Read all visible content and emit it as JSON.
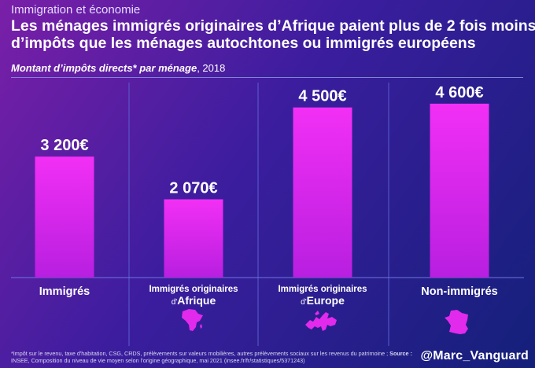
{
  "header": {
    "kicker": "Immigration et économie",
    "title_line1": "Les ménages immigrés originaires d’Afrique paient plus de 2 fois moins",
    "title_line2": "d’impôts que les ménages autochtones ou immigrés européens",
    "subtitle_bold": "Montant d’impôts directs* par ménage",
    "subtitle_rest": ", 2018"
  },
  "chart_data": {
    "type": "bar",
    "title": "Montant d’impôts directs* par ménage, 2018",
    "unit": "€",
    "ylim": [
      0,
      5200
    ],
    "categories": [
      {
        "line1": "",
        "line2": "Immigrés",
        "prefix": "",
        "bold": "",
        "map": null
      },
      {
        "line1": "Immigrés originaires",
        "line2": "",
        "prefix": "d'",
        "bold": "Afrique",
        "map": "africa"
      },
      {
        "line1": "Immigrés originaires",
        "line2": "",
        "prefix": "d'",
        "bold": "Europe",
        "map": "europe"
      },
      {
        "line1": "",
        "line2": "Non-immigrés",
        "prefix": "",
        "bold": "",
        "map": "france"
      }
    ],
    "values": [
      3200,
      2070,
      4500,
      4600
    ],
    "value_labels": [
      "3 200€",
      "2 070€",
      "4 500€",
      "4 600€"
    ],
    "bar_color": "#e12aec"
  },
  "footer": {
    "footnote_text": "*Impôt sur le revenu, taxe d'habitation, CSG, CRDS, prélèvements sur valeurs mobilières, autres prélèvements sociaux sur les revenus du patrimoine ;",
    "source_label": "Source :",
    "source_text": "INSEE, Composition du niveau de vie moyen selon l’origine géographique, mai 2021 (insee.fr/fr/statistiques/5371243)",
    "handle": "@Marc_Vanguard"
  }
}
